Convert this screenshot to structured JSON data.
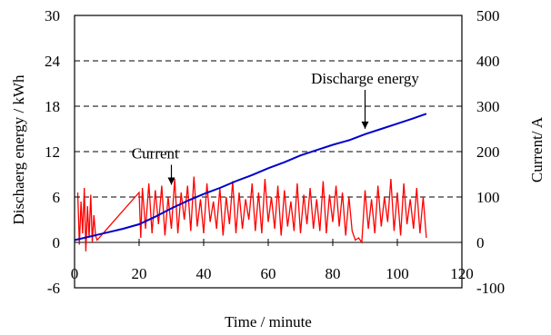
{
  "chart_data": {
    "type": "line",
    "xlabel": "Time / minute",
    "ylabel_left": "Dischaerg energy / kWh",
    "ylabel_right": "Current/ A",
    "xlim": [
      0,
      120
    ],
    "ylim_left": [
      -6,
      30
    ],
    "ylim_right": [
      -100,
      500
    ],
    "xticks": [
      "0",
      "20",
      "40",
      "60",
      "80",
      "100",
      "120"
    ],
    "yticks_left": [
      "-6",
      "0",
      "6",
      "12",
      "18",
      "24",
      "30"
    ],
    "yticks_right": [
      "-100",
      "0",
      "100",
      "200",
      "300",
      "400",
      "500"
    ],
    "grid": "horizontal dashed",
    "series": [
      {
        "name": "Discharge energy",
        "axis": "left",
        "color": "#0000cc",
        "x": [
          0,
          5,
          10,
          15,
          20,
          25,
          30,
          35,
          40,
          45,
          50,
          55,
          60,
          65,
          70,
          75,
          80,
          85,
          90,
          95,
          100,
          105,
          109
        ],
        "y": [
          0.3,
          0.8,
          1.3,
          1.8,
          2.4,
          3.4,
          4.5,
          5.5,
          6.4,
          7.2,
          8.1,
          8.9,
          9.8,
          10.6,
          11.5,
          12.2,
          12.9,
          13.5,
          14.3,
          15.0,
          15.7,
          16.4,
          17.0
        ]
      },
      {
        "name": "Current",
        "axis": "right",
        "color": "#ff0000",
        "x": [
          1,
          1.5,
          2,
          2.5,
          3,
          3.5,
          4,
          4.5,
          5,
          5.5,
          6,
          6.5,
          7,
          20,
          20.5,
          21,
          22,
          23,
          24,
          25,
          26,
          27,
          28,
          29,
          30,
          31,
          32,
          33,
          34,
          35,
          36,
          37,
          38,
          39,
          40,
          41,
          42,
          43,
          44,
          45,
          46,
          47,
          48,
          49,
          50,
          51,
          52,
          53,
          54,
          55,
          56,
          57,
          58,
          59,
          60,
          61,
          62,
          63,
          64,
          65,
          66,
          67,
          68,
          69,
          70,
          71,
          72,
          73,
          74,
          75,
          76,
          77,
          78,
          79,
          80,
          81,
          82,
          83,
          84,
          85,
          86,
          87,
          88,
          89,
          90,
          91,
          92,
          93,
          94,
          95,
          96,
          97,
          98,
          99,
          100,
          101,
          102,
          103,
          104,
          105,
          106,
          107,
          108,
          109
        ],
        "y": [
          110,
          -5,
          90,
          20,
          120,
          -20,
          80,
          10,
          105,
          0,
          60,
          15,
          5,
          110,
          10,
          120,
          30,
          130,
          20,
          115,
          40,
          125,
          15,
          100,
          30,
          140,
          20,
          110,
          50,
          125,
          25,
          145,
          35,
          95,
          20,
          130,
          45,
          90,
          30,
          120,
          15,
          100,
          40,
          135,
          20,
          110,
          30,
          95,
          50,
          130,
          25,
          110,
          20,
          140,
          45,
          100,
          30,
          125,
          15,
          115,
          35,
          90,
          25,
          130,
          20,
          105,
          40,
          120,
          30,
          95,
          25,
          135,
          20,
          105,
          45,
          125,
          35,
          110,
          15,
          100,
          25,
          5,
          10,
          0,
          115,
          30,
          95,
          20,
          125,
          35,
          100,
          45,
          140,
          25,
          110,
          15,
          130,
          40,
          95,
          30,
          120,
          20,
          100,
          10
        ]
      }
    ],
    "annotations": [
      {
        "text": "Discharge energy",
        "x": 90,
        "y_left": 14.3,
        "label_x": 90,
        "label_y_left": 21
      },
      {
        "text": "Current",
        "x": 30,
        "y_right": 115,
        "label_x": 25,
        "label_y_right": 185
      }
    ]
  }
}
